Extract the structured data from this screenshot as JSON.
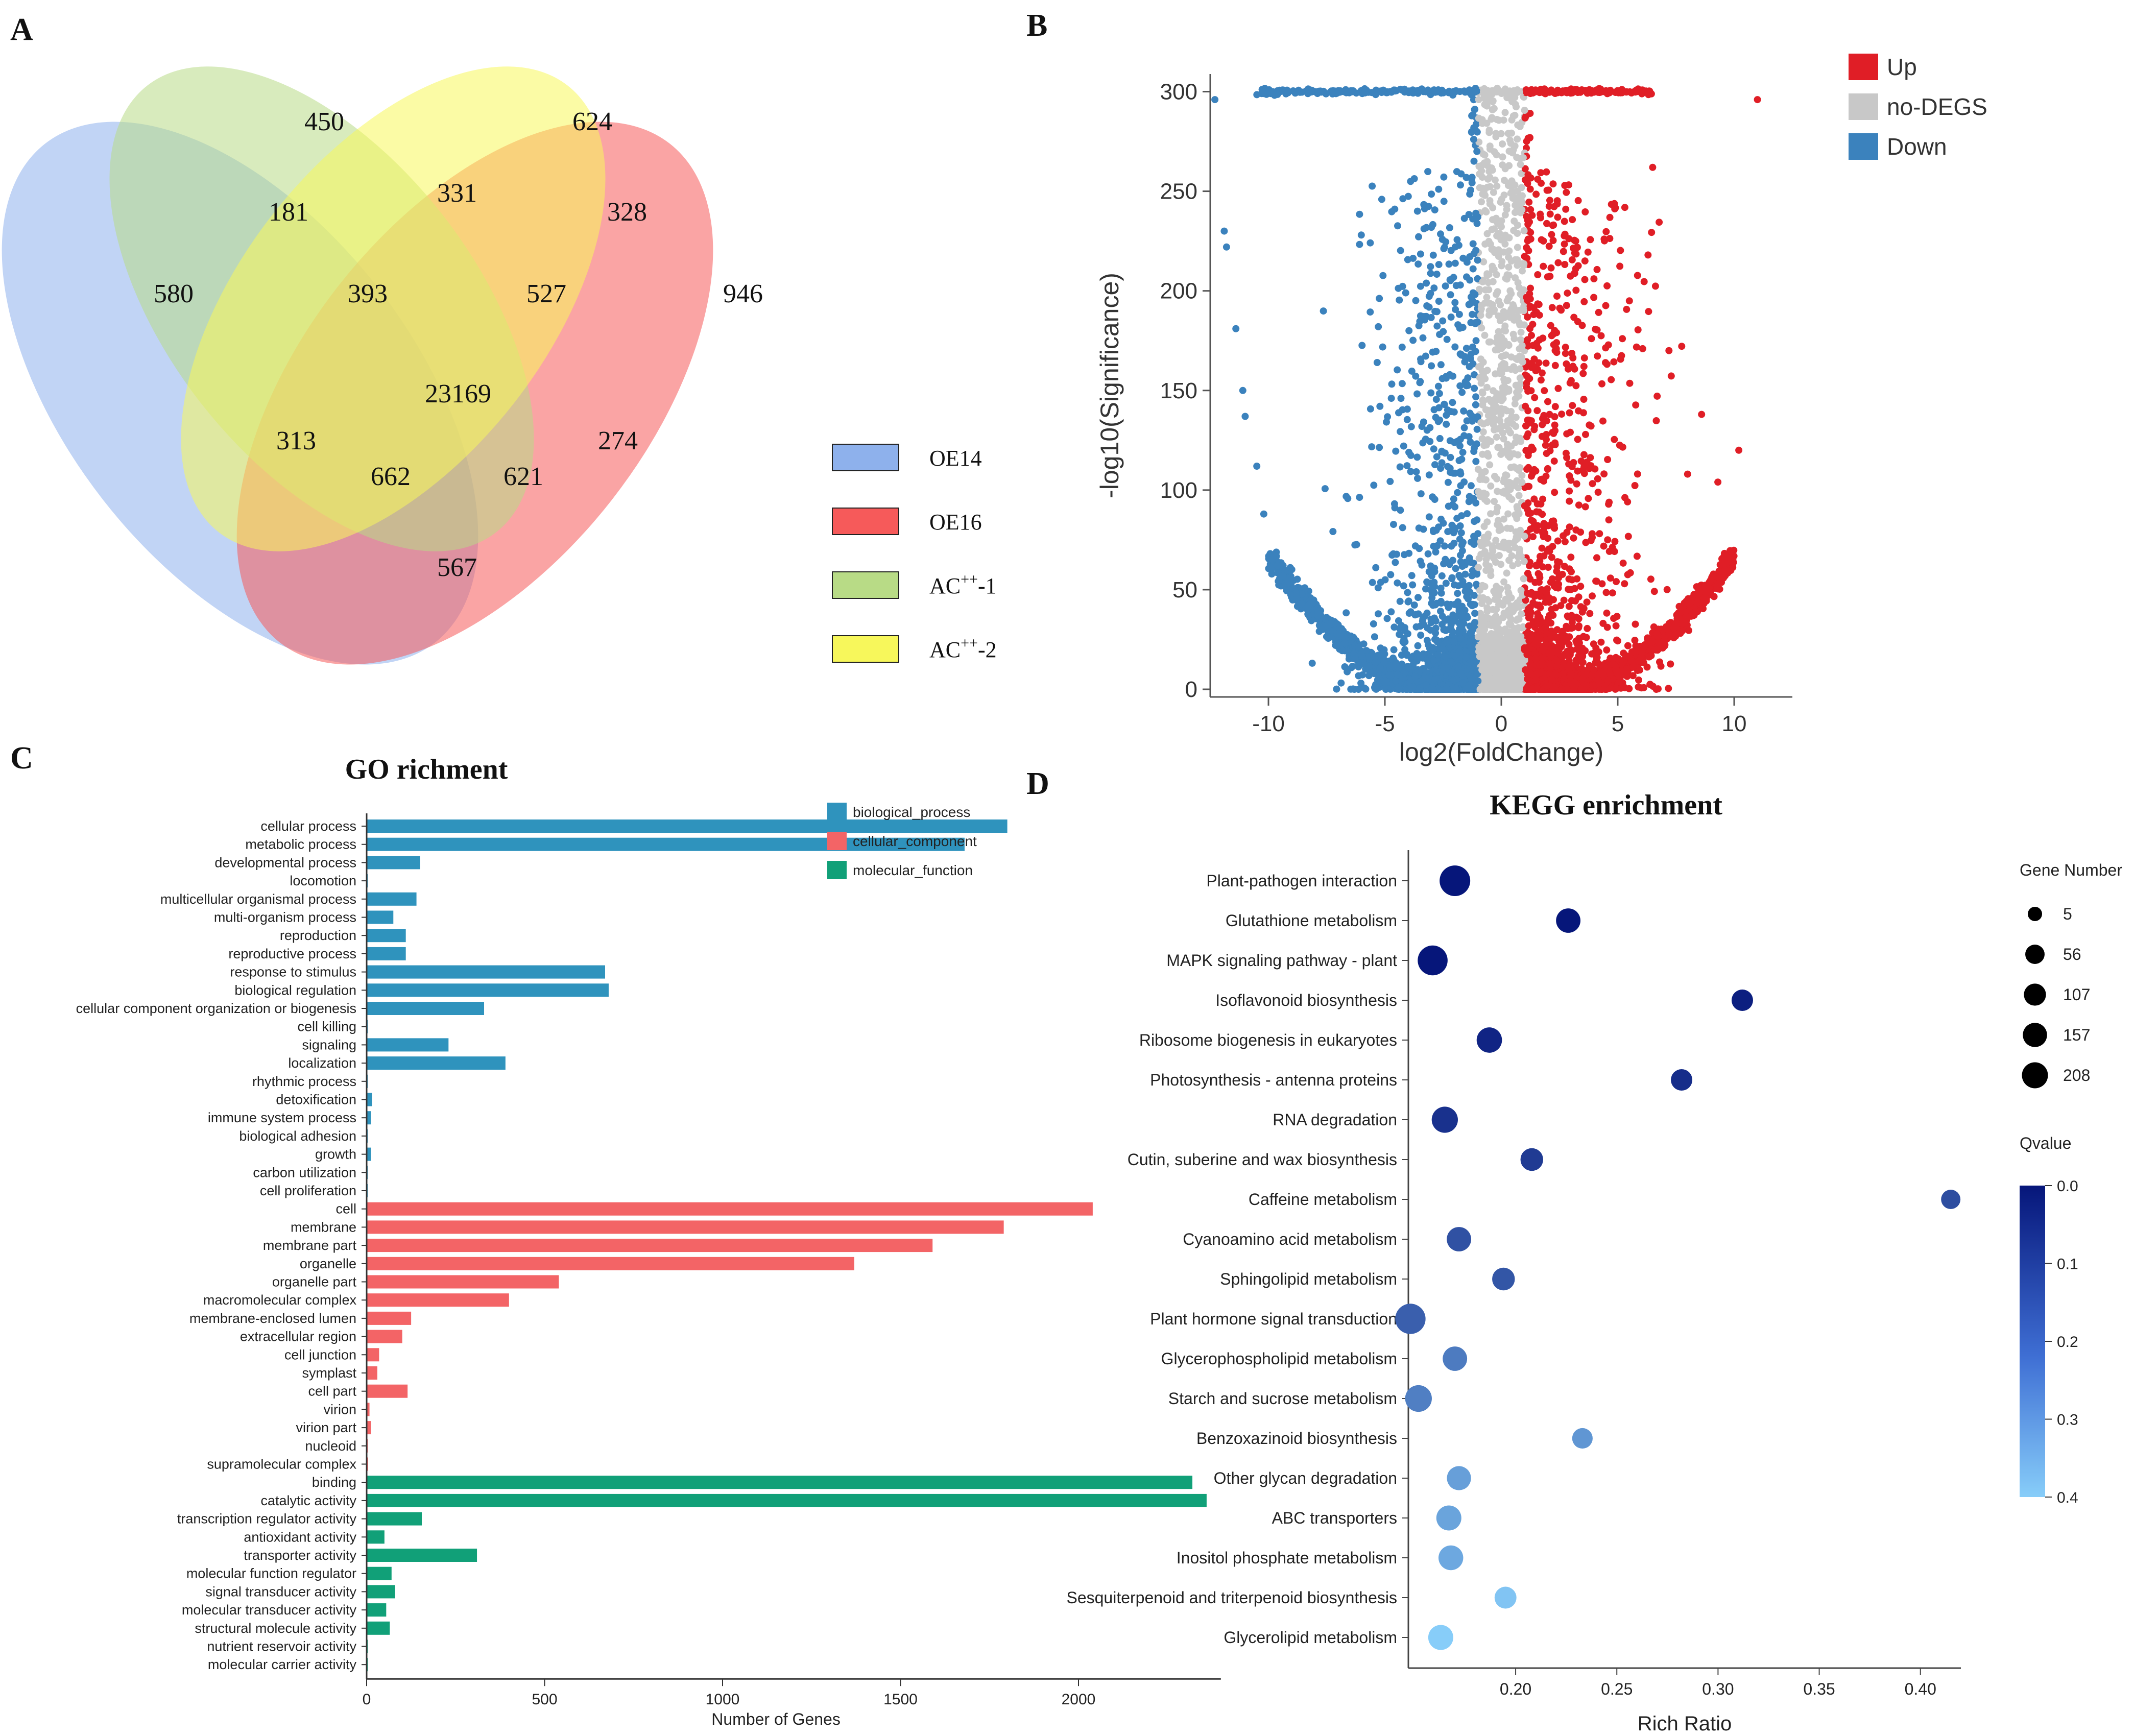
{
  "panels": {
    "a": "A",
    "b": "B",
    "c": "C",
    "d": "D"
  },
  "colors": {
    "oe14": "#8eb1ec",
    "oe16": "#f65a5a",
    "ac1": "#b8db86",
    "ac2": "#f7f75b",
    "up": "#e01e26",
    "nodegs": "#c8c8c8",
    "down": "#3b82bd",
    "bp": "#2f93bd",
    "cc": "#f36466",
    "mf": "#11a078"
  },
  "chart_data": [
    {
      "type": "venn",
      "sets": [
        "OE14",
        "OE16",
        "AC",
        "AC"
      ],
      "set_labels": [
        {
          "base": "OE14",
          "sup": ""
        },
        {
          "base": "OE16",
          "sup": ""
        },
        {
          "base": "AC",
          "sup": "++",
          "suffix": "-1"
        },
        {
          "base": "AC",
          "sup": "++",
          "suffix": "-2"
        }
      ],
      "regions": [
        {
          "label": "OE14 only",
          "value": "580"
        },
        {
          "label": "AC-1 only",
          "value": "450"
        },
        {
          "label": "AC-2 only",
          "value": "624"
        },
        {
          "label": "OE16 only",
          "value": "946"
        },
        {
          "label": "OE14 ∩ AC-1",
          "value": "181"
        },
        {
          "label": "AC-1 ∩ AC-2",
          "value": "331"
        },
        {
          "label": "AC-2 ∩ OE16",
          "value": "328"
        },
        {
          "label": "OE14 ∩ AC-1 ∩ AC-2",
          "value": "393"
        },
        {
          "label": "AC-1 ∩ AC-2 ∩ OE16",
          "value": "527"
        },
        {
          "label": "all four",
          "value": "23169"
        },
        {
          "label": "OE14 ∩ AC-2",
          "value": "313"
        },
        {
          "label": "AC-1 ∩ OE16",
          "value": "274"
        },
        {
          "label": "OE14 ∩ AC-2 ∩ OE16",
          "value": "662"
        },
        {
          "label": "OE14 ∩ AC-1 ∩ OE16",
          "value": "621"
        },
        {
          "label": "OE14 ∩ OE16",
          "value": "567"
        }
      ]
    },
    {
      "type": "scatter",
      "title": "",
      "xlabel": "log2(FoldChange)",
      "ylabel": "-log10(Significance)",
      "xlim": [
        -12.5,
        12.5
      ],
      "ylim": [
        0,
        305
      ],
      "xticks": [
        "-10",
        "-5",
        "0",
        "5",
        "10"
      ],
      "xtick_values": [
        -10,
        -5,
        0,
        5,
        10
      ],
      "yticks": [
        "0",
        "50",
        "100",
        "150",
        "200",
        "250",
        "300"
      ],
      "ytick_values": [
        0,
        50,
        100,
        150,
        200,
        250,
        300
      ],
      "legend": [
        "Up",
        "no-DEGS",
        "Down"
      ],
      "thresholds": {
        "down_max": -1,
        "up_min": 1
      },
      "capped_value": 300,
      "note": "thousands of genes; Down when log2FC < -1, Up when log2FC > 1, otherwise no-DEGS"
    },
    {
      "type": "bar",
      "orientation": "horizontal",
      "title": "GO richment",
      "xlabel": "Number of Genes",
      "xlim": [
        0,
        2400
      ],
      "xticks": [
        "0",
        "500",
        "1000",
        "1500",
        "2000"
      ],
      "xtick_values": [
        0,
        500,
        1000,
        1500,
        2000
      ],
      "legend": [
        "biological_process",
        "cellular_component",
        "molecular_function"
      ],
      "categories": [
        "cellular process",
        "metabolic process",
        "developmental process",
        "locomotion",
        "multicellular organismal process",
        "multi-organism process",
        "reproduction",
        "reproductive process",
        "response to stimulus",
        "biological regulation",
        "cellular component organization or biogenesis",
        "cell killing",
        "signaling",
        "localization",
        "rhythmic process",
        "detoxification",
        "immune system process",
        "biological adhesion",
        "growth",
        "carbon utilization",
        "cell proliferation",
        "cell",
        "membrane",
        "membrane part",
        "organelle",
        "organelle part",
        "macromolecular complex",
        "membrane-enclosed lumen",
        "extracellular region",
        "cell junction",
        "symplast",
        "cell part",
        "virion",
        "virion part",
        "nucleoid",
        "supramolecular complex",
        "binding",
        "catalytic activity",
        "transcription regulator activity",
        "antioxidant activity",
        "transporter activity",
        "molecular function regulator",
        "signal transducer activity",
        "molecular transducer activity",
        "structural molecule activity",
        "nutrient reservoir activity",
        "molecular carrier activity"
      ],
      "groups": [
        0,
        0,
        0,
        0,
        0,
        0,
        0,
        0,
        0,
        0,
        0,
        0,
        0,
        0,
        0,
        0,
        0,
        0,
        0,
        0,
        0,
        1,
        1,
        1,
        1,
        1,
        1,
        1,
        1,
        1,
        1,
        1,
        1,
        1,
        1,
        1,
        2,
        2,
        2,
        2,
        2,
        2,
        2,
        2,
        2,
        2,
        2
      ],
      "values": [
        1800,
        1680,
        150,
        3,
        140,
        75,
        110,
        110,
        670,
        680,
        330,
        3,
        230,
        390,
        2,
        15,
        12,
        2,
        12,
        2,
        2,
        2040,
        1790,
        1590,
        1370,
        540,
        400,
        125,
        100,
        35,
        30,
        115,
        8,
        12,
        3,
        4,
        2320,
        2360,
        155,
        50,
        310,
        70,
        80,
        55,
        65,
        3,
        3
      ]
    },
    {
      "type": "bubble",
      "title": "KEGG enrichment",
      "xlabel": "Rich Ratio",
      "xlim": [
        0.147,
        0.42
      ],
      "xticks": [
        "0.20",
        "0.25",
        "0.30",
        "0.35",
        "0.40"
      ],
      "xtick_values": [
        0.2,
        0.25,
        0.3,
        0.35,
        0.4
      ],
      "size_legend_title": "Gene Number",
      "size_legend": [
        "5",
        "56",
        "107",
        "157",
        "208"
      ],
      "size_legend_values": [
        5,
        56,
        107,
        157,
        208
      ],
      "color_legend_title": "Qvalue",
      "color_ticks": [
        "0.0",
        "0.1",
        "0.2",
        "0.3",
        "0.4"
      ],
      "color_tick_values": [
        0,
        0.1,
        0.2,
        0.3,
        0.4
      ],
      "color_range": [
        "#06167a",
        "#87cdf9"
      ],
      "pathways": [
        {
          "name": "Plant-pathogen interaction",
          "ratio": 0.17,
          "genes": 208,
          "q": 0.0
        },
        {
          "name": "Glutathione metabolism",
          "ratio": 0.226,
          "genes": 80,
          "q": 0.0
        },
        {
          "name": "MAPK signaling pathway - plant",
          "ratio": 0.159,
          "genes": 190,
          "q": 0.0
        },
        {
          "name": "Isoflavonoid biosynthesis",
          "ratio": 0.312,
          "genes": 40,
          "q": 0.02
        },
        {
          "name": "Ribosome biogenesis in eukaryotes",
          "ratio": 0.187,
          "genes": 95,
          "q": 0.03
        },
        {
          "name": "Photosynthesis - antenna proteins",
          "ratio": 0.282,
          "genes": 40,
          "q": 0.05
        },
        {
          "name": "RNA degradation",
          "ratio": 0.165,
          "genes": 110,
          "q": 0.06
        },
        {
          "name": "Cutin, suberine and wax biosynthesis",
          "ratio": 0.208,
          "genes": 55,
          "q": 0.08
        },
        {
          "name": "Caffeine metabolism",
          "ratio": 0.415,
          "genes": 20,
          "q": 0.12
        },
        {
          "name": "Cyanoamino acid metabolism",
          "ratio": 0.172,
          "genes": 80,
          "q": 0.13
        },
        {
          "name": "Sphingolipid metabolism",
          "ratio": 0.194,
          "genes": 55,
          "q": 0.14
        },
        {
          "name": "Plant hormone signal transduction",
          "ratio": 0.148,
          "genes": 200,
          "q": 0.16
        },
        {
          "name": "Glycerophospholipid metabolism",
          "ratio": 0.17,
          "genes": 80,
          "q": 0.22
        },
        {
          "name": "Starch and sucrose metabolism",
          "ratio": 0.152,
          "genes": 120,
          "q": 0.23
        },
        {
          "name": "Benzoxazinoid biosynthesis",
          "ratio": 0.233,
          "genes": 30,
          "q": 0.28
        },
        {
          "name": "Other glycan degradation",
          "ratio": 0.172,
          "genes": 75,
          "q": 0.3
        },
        {
          "name": "ABC transporters",
          "ratio": 0.167,
          "genes": 90,
          "q": 0.31
        },
        {
          "name": "Inositol phosphate metabolism",
          "ratio": 0.168,
          "genes": 85,
          "q": 0.32
        },
        {
          "name": "Sesquiterpenoid and triterpenoid biosynthesis",
          "ratio": 0.195,
          "genes": 45,
          "q": 0.38
        },
        {
          "name": "Glycerolipid metabolism",
          "ratio": 0.163,
          "genes": 90,
          "q": 0.4
        }
      ]
    }
  ]
}
